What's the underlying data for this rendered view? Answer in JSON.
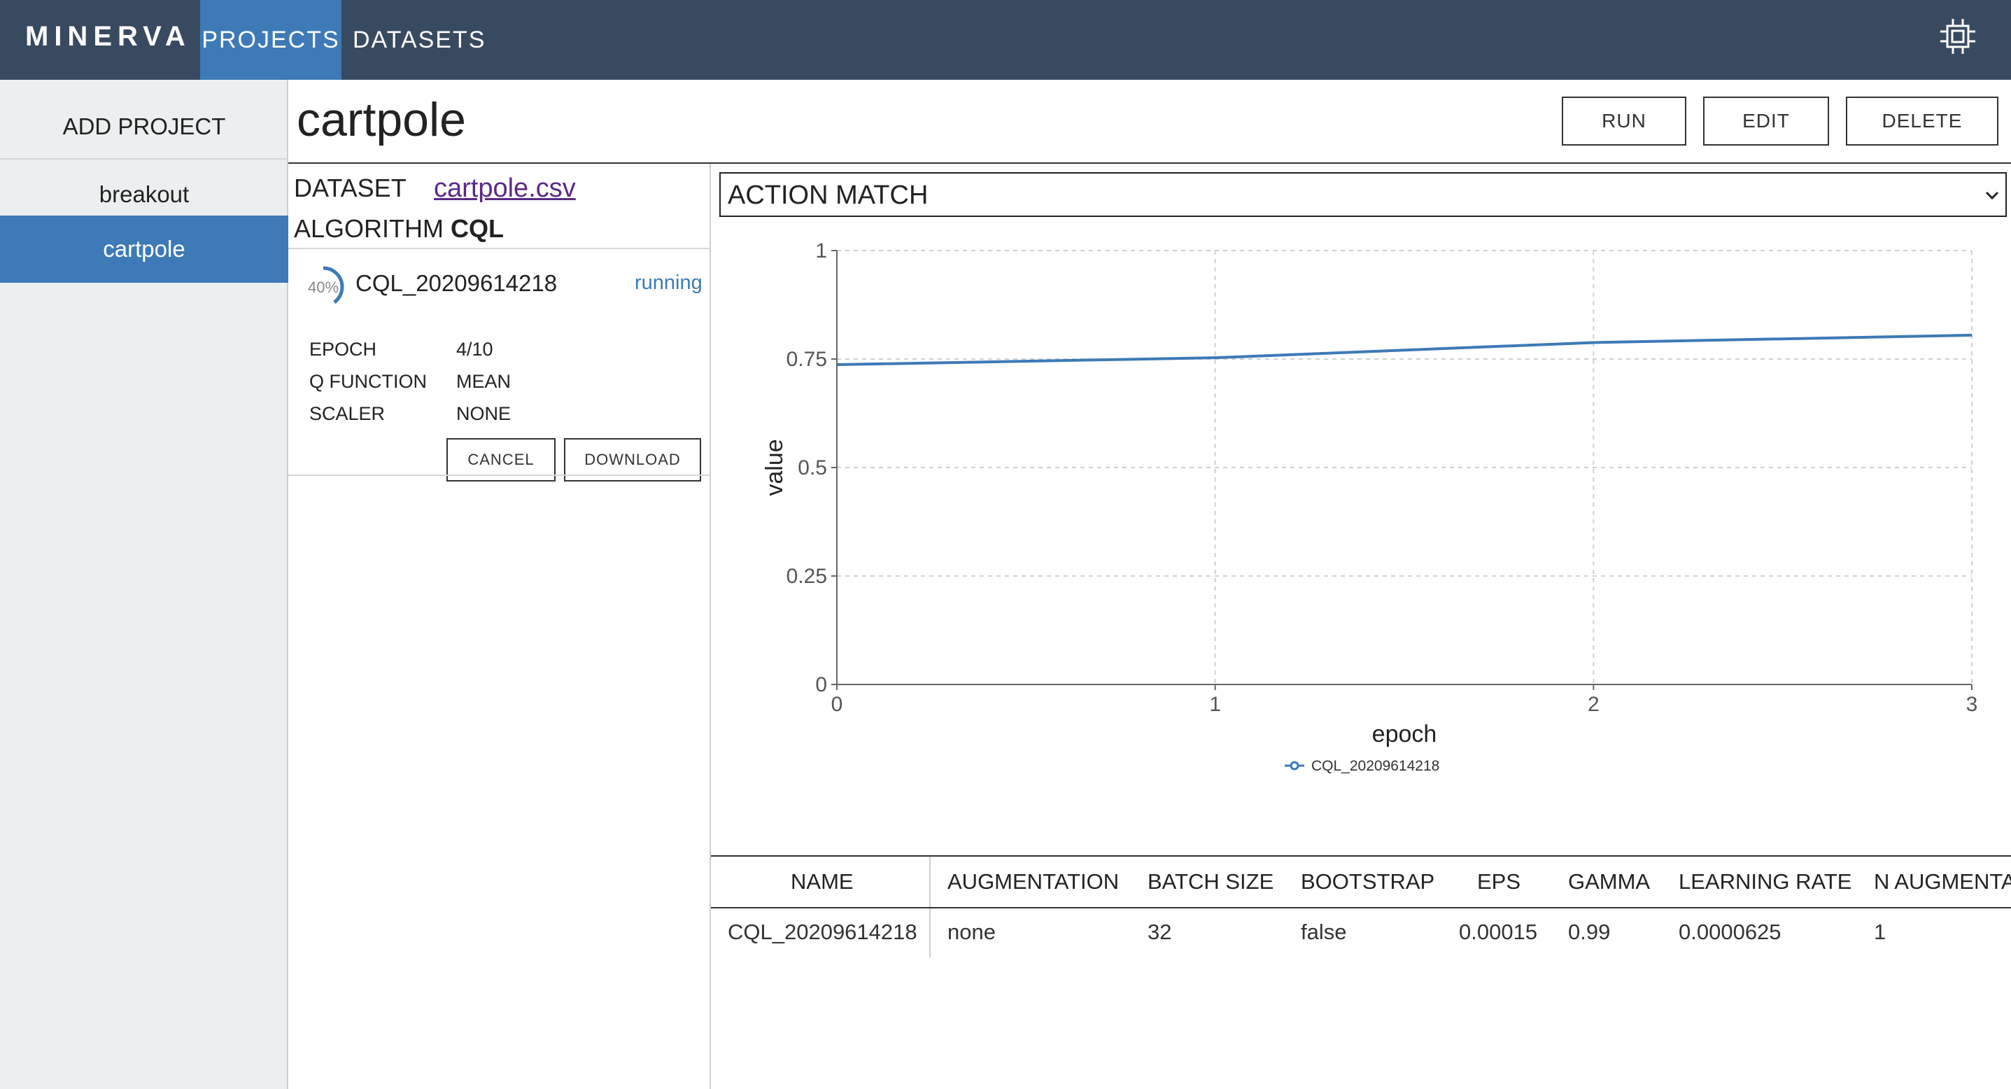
{
  "app": {
    "logo": "MINERVA",
    "nav": [
      {
        "label": "PROJECTS",
        "active": true
      },
      {
        "label": "DATASETS",
        "active": false
      }
    ],
    "settings_icon": "chip-icon"
  },
  "sidebar": {
    "add_label": "ADD PROJECT",
    "items": [
      {
        "label": "breakout",
        "active": false
      },
      {
        "label": "cartpole",
        "active": true
      }
    ]
  },
  "project": {
    "title": "cartpole",
    "buttons": {
      "run": "RUN",
      "edit": "EDIT",
      "delete": "DELETE"
    },
    "dataset_label": "DATASET",
    "dataset_name": "cartpole.csv",
    "algorithm_label": "ALGORITHM",
    "algorithm_name": "CQL"
  },
  "experiment": {
    "progress_text": "40%",
    "progress": 0.4,
    "name": "CQL_20209614218",
    "status": "running",
    "fields": [
      {
        "key": "EPOCH",
        "value": "4/10"
      },
      {
        "key": "Q FUNCTION",
        "value": "MEAN"
      },
      {
        "key": "SCALER",
        "value": "NONE"
      }
    ],
    "cancel_label": "CANCEL",
    "download_label": "DOWNLOAD"
  },
  "metric_select": {
    "selected": "ACTION MATCH"
  },
  "chart_data": {
    "type": "line",
    "xlabel": "epoch",
    "ylabel": "value",
    "xlim": [
      0,
      3
    ],
    "ylim": [
      0,
      1
    ],
    "xticks": [
      "0",
      "1",
      "2",
      "3"
    ],
    "yticks": [
      "0",
      "0.25",
      "0.5",
      "0.75",
      "1"
    ],
    "grid": true,
    "legend_position": "bottom",
    "series": [
      {
        "name": "CQL_20209614218",
        "color": "#3d7ab7",
        "x": [
          0,
          1,
          2,
          3
        ],
        "y": [
          0.737,
          0.753,
          0.788,
          0.805
        ]
      }
    ]
  },
  "params_table": {
    "headers": [
      "NAME",
      "AUGMENTATION",
      "BATCH SIZE",
      "BOOTSTRAP",
      "EPS",
      "GAMMA",
      "LEARNING RATE",
      "N AUGMENTATIONS"
    ],
    "rows": [
      [
        "CQL_20209614218",
        "none",
        "32",
        "false",
        "0.00015",
        "0.99",
        "0.0000625",
        "1"
      ]
    ]
  },
  "colors": {
    "topbar": "#384a60",
    "accent": "#3d7ab7",
    "sidebar_bg": "#eceff0",
    "link": "#5a2a87"
  }
}
